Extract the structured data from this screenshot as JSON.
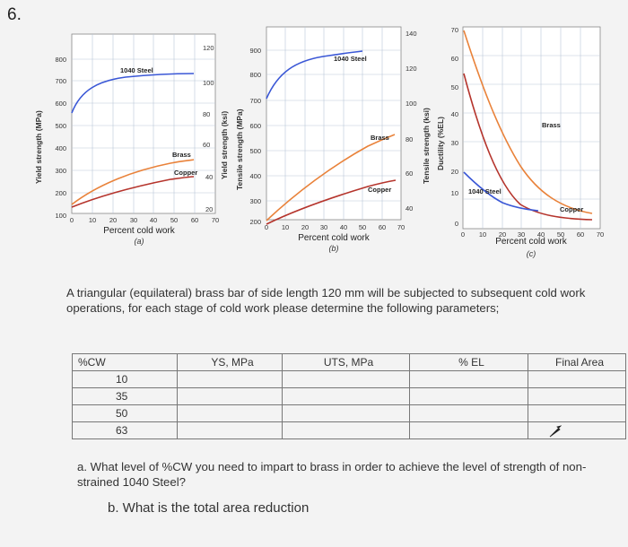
{
  "question_number": "6.",
  "charts": {
    "a": {
      "y_left_label": "Yield strength (MPa)",
      "y_left_ticks": [
        "800",
        "700",
        "600",
        "500",
        "400",
        "300",
        "200",
        "100"
      ],
      "y_right_ticks": [
        "120",
        "100",
        "80",
        "60",
        "40",
        "20"
      ],
      "x_ticks": [
        "0",
        "10",
        "20",
        "30",
        "40",
        "50",
        "60",
        "70"
      ],
      "x_label": "Percent cold work",
      "sub_label": "(a)",
      "curve_labels": {
        "steel": "1040 Steel",
        "brass": "Brass",
        "copper": "Copper"
      }
    },
    "b": {
      "y_left_label": "Tensile strength (MPa)",
      "y_left_ticks": [
        "900",
        "800",
        "700",
        "600",
        "500",
        "400",
        "300",
        "200"
      ],
      "y_right_label": "Tensile strength (ksi)",
      "y_right_ticks": [
        "140",
        "120",
        "100",
        "80",
        "60",
        "40"
      ],
      "y_mid_label": "Yield strength (ksi)",
      "x_ticks": [
        "0",
        "10",
        "20",
        "30",
        "40",
        "50",
        "60",
        "70"
      ],
      "x_label": "Percent cold work",
      "sub_label": "(b)",
      "curve_labels": {
        "steel": "1040 Steel",
        "brass": "Brass",
        "copper": "Copper"
      }
    },
    "c": {
      "y_label": "Ductility (%EL)",
      "y_ticks": [
        "70",
        "60",
        "50",
        "40",
        "30",
        "20",
        "10",
        "0"
      ],
      "x_ticks": [
        "0",
        "10",
        "20",
        "30",
        "40",
        "50",
        "60",
        "70"
      ],
      "x_label": "Percent cold work",
      "sub_label": "(c)",
      "curve_labels": {
        "steel": "1040 Steel",
        "brass": "Brass",
        "copper": "Copper"
      }
    },
    "colors": {
      "steel": "#3a57d6",
      "brass": "#e9823a",
      "copper": "#b5342c"
    }
  },
  "problem_text": "A triangular (equilateral) brass bar of side length 120 mm will be subjected to subsequent cold work operations, for each stage of cold work please determine the following parameters;",
  "table": {
    "headers": [
      "%CW",
      "YS, MPa",
      "UTS, MPa",
      "% EL",
      "Final Area"
    ],
    "rows": [
      "10",
      "35",
      "50",
      "63"
    ]
  },
  "question_a": "a.  What level of %CW you need to impart to brass in order to achieve the level of strength of non-strained 1040 Steel?",
  "question_b": "b. What is the total area reduction"
}
